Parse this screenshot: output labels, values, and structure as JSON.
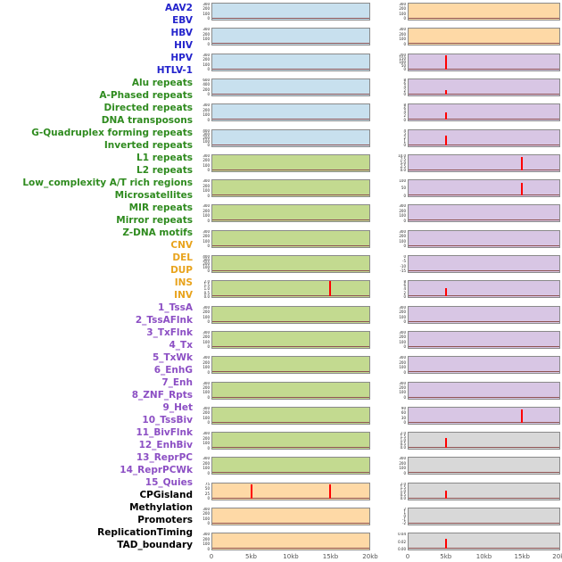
{
  "chart_data": {
    "type": "line",
    "title": "",
    "description": "Grid of 44 small genomic signal-profile panels (2 columns x 22 rows, column-major order) over a 0-20kb window; flat near-zero traces with occasional red spikes at 5kb or 15kb.",
    "x_axis": {
      "ticks": [
        "0",
        "5kb",
        "10kb",
        "15kb",
        "20kb"
      ],
      "range_kb": [
        0,
        20
      ]
    },
    "palette": {
      "label": {
        "blue": "#2323cc",
        "green": "#2f8b1f",
        "orange": "#e8a31c",
        "purple": "#8c4fc4",
        "black": "#000000"
      },
      "fill": {
        "blue": "#c8e0ee",
        "green": "#c3da90",
        "orange": "#fed9a6",
        "purple": "#d8c6e4",
        "grey": "#d8d8d8"
      },
      "panel_border": "#8a8a8a",
      "baseline": "#8f5454",
      "spike": "#ff0000",
      "ytick_text": "#222222",
      "xtick_text": "#555555"
    },
    "track_labels": [
      {
        "text": "AAV2",
        "color": "blue"
      },
      {
        "text": "EBV",
        "color": "blue"
      },
      {
        "text": "HBV",
        "color": "blue"
      },
      {
        "text": "HIV",
        "color": "blue"
      },
      {
        "text": "HPV",
        "color": "blue"
      },
      {
        "text": "HTLV-1",
        "color": "blue"
      },
      {
        "text": "Alu repeats",
        "color": "green"
      },
      {
        "text": "A-Phased repeats",
        "color": "green"
      },
      {
        "text": "Directed repeats",
        "color": "green"
      },
      {
        "text": "DNA transposons",
        "color": "green"
      },
      {
        "text": "G-Quadruplex forming repeats",
        "color": "green"
      },
      {
        "text": "Inverted repeats",
        "color": "green"
      },
      {
        "text": "L1 repeats",
        "color": "green"
      },
      {
        "text": "L2 repeats",
        "color": "green"
      },
      {
        "text": "Low_complexity A/T rich regions",
        "color": "green"
      },
      {
        "text": "Microsatellites",
        "color": "green"
      },
      {
        "text": "MIR repeats",
        "color": "green"
      },
      {
        "text": "Mirror repeats",
        "color": "green"
      },
      {
        "text": "Z-DNA motifs",
        "color": "green"
      },
      {
        "text": "CNV",
        "color": "orange"
      },
      {
        "text": "DEL",
        "color": "orange"
      },
      {
        "text": "DUP",
        "color": "orange"
      },
      {
        "text": "INS",
        "color": "orange"
      },
      {
        "text": "INV",
        "color": "orange"
      },
      {
        "text": "1_TssA",
        "color": "purple"
      },
      {
        "text": "2_TssAFlnk",
        "color": "purple"
      },
      {
        "text": "3_TxFlnk",
        "color": "purple"
      },
      {
        "text": "4_Tx",
        "color": "purple"
      },
      {
        "text": "5_TxWk",
        "color": "purple"
      },
      {
        "text": "6_EnhG",
        "color": "purple"
      },
      {
        "text": "7_Enh",
        "color": "purple"
      },
      {
        "text": "8_ZNF_Rpts",
        "color": "purple"
      },
      {
        "text": "9_Het",
        "color": "purple"
      },
      {
        "text": "10_TssBiv",
        "color": "purple"
      },
      {
        "text": "11_BivFlnk",
        "color": "purple"
      },
      {
        "text": "12_EnhBiv",
        "color": "purple"
      },
      {
        "text": "13_ReprPC",
        "color": "purple"
      },
      {
        "text": "14_ReprPCWk",
        "color": "purple"
      },
      {
        "text": "15_Quies",
        "color": "purple"
      },
      {
        "text": "CPGisland",
        "color": "black"
      },
      {
        "text": "Methylation",
        "color": "black"
      },
      {
        "text": "Promoters",
        "color": "black"
      },
      {
        "text": "ReplicationTiming",
        "color": "black"
      },
      {
        "text": "TAD_boundary",
        "color": "black"
      }
    ],
    "columns": [
      {
        "name": "left",
        "panels": [
          {
            "track": "AAV2",
            "fill": "blue",
            "yticks": [
              "300",
              "200",
              "100",
              "0"
            ],
            "spikes": []
          },
          {
            "track": "EBV",
            "fill": "blue",
            "yticks": [
              "300",
              "200",
              "100",
              "0"
            ],
            "spikes": []
          },
          {
            "track": "HBV",
            "fill": "blue",
            "yticks": [
              "300",
              "200",
              "100",
              "0"
            ],
            "spikes": []
          },
          {
            "track": "HIV",
            "fill": "blue",
            "yticks": [
              "600",
              "400",
              "200",
              "0"
            ],
            "spikes": []
          },
          {
            "track": "HPV",
            "fill": "blue",
            "yticks": [
              "300",
              "200",
              "100",
              "0"
            ],
            "spikes": []
          },
          {
            "track": "HTLV-1",
            "fill": "blue",
            "yticks": [
              "400",
              "300",
              "200",
              "100",
              "0"
            ],
            "spikes": []
          },
          {
            "track": "Alu repeats",
            "fill": "green",
            "yticks": [
              "300",
              "200",
              "100",
              "0"
            ],
            "spikes": []
          },
          {
            "track": "A-Phased repeats",
            "fill": "green",
            "yticks": [
              "300",
              "200",
              "100",
              "0"
            ],
            "spikes": []
          },
          {
            "track": "Directed repeats",
            "fill": "green",
            "yticks": [
              "300",
              "200",
              "100",
              "0"
            ],
            "spikes": []
          },
          {
            "track": "DNA transposons",
            "fill": "green",
            "yticks": [
              "300",
              "200",
              "100",
              "0"
            ],
            "spikes": []
          },
          {
            "track": "G-Quadruplex forming repeats",
            "fill": "green",
            "yticks": [
              "400",
              "300",
              "200",
              "100",
              "0"
            ],
            "spikes": []
          },
          {
            "track": "Inverted repeats",
            "fill": "green",
            "yticks": [
              "2.0",
              "1.5",
              "1.0",
              "0.5",
              "0.0"
            ],
            "spikes": [
              {
                "x_kb": 15,
                "height_frac": 0.95
              }
            ]
          },
          {
            "track": "L1 repeats",
            "fill": "green",
            "yticks": [
              "300",
              "200",
              "100",
              "0"
            ],
            "spikes": []
          },
          {
            "track": "L2 repeats",
            "fill": "green",
            "yticks": [
              "300",
              "200",
              "100",
              "0"
            ],
            "spikes": []
          },
          {
            "track": "Low_complexity A/T rich regions",
            "fill": "green",
            "yticks": [
              "300",
              "200",
              "100",
              "0"
            ],
            "spikes": []
          },
          {
            "track": "Microsatellites",
            "fill": "green",
            "yticks": [
              "300",
              "200",
              "100",
              "0"
            ],
            "spikes": []
          },
          {
            "track": "MIR repeats",
            "fill": "green",
            "yticks": [
              "300",
              "200",
              "100",
              "0"
            ],
            "spikes": []
          },
          {
            "track": "Mirror repeats",
            "fill": "green",
            "yticks": [
              "300",
              "200",
              "100",
              "0"
            ],
            "spikes": []
          },
          {
            "track": "Z-DNA motifs",
            "fill": "green",
            "yticks": [
              "300",
              "200",
              "100",
              "0"
            ],
            "spikes": []
          },
          {
            "track": "CNV",
            "fill": "orange",
            "yticks": [
              "75",
              "50",
              "25",
              "0"
            ],
            "spikes": [
              {
                "x_kb": 5,
                "height_frac": 0.9
              },
              {
                "x_kb": 15,
                "height_frac": 0.85
              }
            ]
          },
          {
            "track": "DEL",
            "fill": "orange",
            "yticks": [
              "300",
              "200",
              "100",
              "0"
            ],
            "spikes": []
          },
          {
            "track": "DUP",
            "fill": "orange",
            "yticks": [
              "300",
              "200",
              "100",
              "0"
            ],
            "spikes": []
          }
        ]
      },
      {
        "name": "right",
        "panels": [
          {
            "track": "INS",
            "fill": "orange",
            "yticks": [
              "300",
              "200",
              "100",
              "0"
            ],
            "spikes": []
          },
          {
            "track": "INV",
            "fill": "orange",
            "yticks": [
              "300",
              "200",
              "100",
              "0"
            ],
            "spikes": []
          },
          {
            "track": "1_TssA",
            "fill": "purple",
            "yticks": [
              "200",
              "150",
              "100",
              "50",
              "0"
            ],
            "spikes": [
              {
                "x_kb": 5,
                "height_frac": 0.85
              }
            ]
          },
          {
            "track": "2_TssAFlnk",
            "fill": "purple",
            "yticks": [
              "8",
              "6",
              "4",
              "2",
              "0"
            ],
            "spikes": [
              {
                "x_kb": 5,
                "height_frac": 0.3
              }
            ]
          },
          {
            "track": "3_TxFlnk",
            "fill": "purple",
            "yticks": [
              "8",
              "6",
              "4",
              "2",
              "0"
            ],
            "spikes": [
              {
                "x_kb": 5,
                "height_frac": 0.45
              }
            ]
          },
          {
            "track": "4_Tx",
            "fill": "purple",
            "yticks": [
              "4",
              "3",
              "2",
              "1",
              "0"
            ],
            "spikes": [
              {
                "x_kb": 5,
                "height_frac": 0.6
              }
            ]
          },
          {
            "track": "5_TxWk",
            "fill": "purple",
            "yticks": [
              "10.0",
              "7.5",
              "5.0",
              "2.5",
              "0.0"
            ],
            "spikes": [
              {
                "x_kb": 15,
                "height_frac": 0.85
              }
            ]
          },
          {
            "track": "6_EnhG",
            "fill": "purple",
            "yticks": [
              "100",
              "50",
              "0"
            ],
            "spikes": [
              {
                "x_kb": 15,
                "height_frac": 0.8
              }
            ]
          },
          {
            "track": "7_Enh",
            "fill": "purple",
            "yticks": [
              "300",
              "200",
              "100",
              "0"
            ],
            "spikes": []
          },
          {
            "track": "8_ZNF_Rpts",
            "fill": "purple",
            "yticks": [
              "300",
              "200",
              "100",
              "0"
            ],
            "spikes": []
          },
          {
            "track": "9_Het",
            "fill": "purple",
            "yticks": [
              "0",
              "-5",
              "-10",
              "-15"
            ],
            "spikes": []
          },
          {
            "track": "10_TssBiv",
            "fill": "purple",
            "yticks": [
              "8",
              "6",
              "4",
              "2",
              "0"
            ],
            "spikes": [
              {
                "x_kb": 5,
                "height_frac": 0.5
              }
            ]
          },
          {
            "track": "11_BivFlnk",
            "fill": "purple",
            "yticks": [
              "300",
              "200",
              "100",
              "0"
            ],
            "spikes": []
          },
          {
            "track": "12_EnhBiv",
            "fill": "purple",
            "yticks": [
              "300",
              "200",
              "100",
              "0"
            ],
            "spikes": []
          },
          {
            "track": "13_ReprPC",
            "fill": "purple",
            "yticks": [
              "300",
              "200",
              "100",
              "0"
            ],
            "spikes": []
          },
          {
            "track": "14_ReprPCWk",
            "fill": "purple",
            "yticks": [
              "300",
              "200",
              "100",
              "0"
            ],
            "spikes": []
          },
          {
            "track": "15_Quies",
            "fill": "purple",
            "yticks": [
              "90",
              "60",
              "30",
              "0"
            ],
            "spikes": [
              {
                "x_kb": 15,
                "height_frac": 0.85
              }
            ]
          },
          {
            "track": "CPGisland",
            "fill": "grey",
            "yticks": [
              "2.0",
              "1.5",
              "1.0",
              "0.5",
              "0.0"
            ],
            "spikes": [
              {
                "x_kb": 5,
                "height_frac": 0.6
              }
            ]
          },
          {
            "track": "Methylation",
            "fill": "grey",
            "yticks": [
              "300",
              "200",
              "100",
              "0"
            ],
            "spikes": []
          },
          {
            "track": "Promoters",
            "fill": "grey",
            "yticks": [
              "2.0",
              "1.5",
              "1.0",
              "0.5",
              "0.0"
            ],
            "spikes": [
              {
                "x_kb": 5,
                "height_frac": 0.5
              }
            ]
          },
          {
            "track": "ReplicationTiming",
            "fill": "grey",
            "yticks": [
              "2",
              "1",
              "0",
              "-1",
              "-2"
            ],
            "spikes": []
          },
          {
            "track": "TAD_boundary",
            "fill": "grey",
            "yticks": [
              "0.04",
              "0.02",
              "0.00"
            ],
            "spikes": [
              {
                "x_kb": 5,
                "height_frac": 0.65
              }
            ]
          }
        ]
      }
    ]
  }
}
